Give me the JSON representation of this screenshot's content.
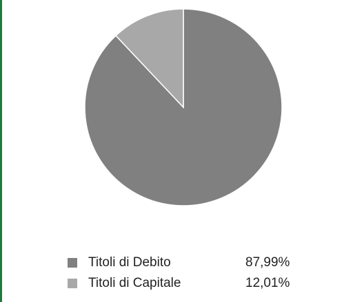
{
  "chart_data": {
    "type": "pie",
    "categories": [
      "Titoli di Debito",
      "Titoli di Capitale"
    ],
    "values": [
      87.99,
      12.01
    ],
    "value_labels": [
      "87,99%",
      "12,01%"
    ],
    "colors": [
      "#808080",
      "#a8a8a8"
    ]
  }
}
